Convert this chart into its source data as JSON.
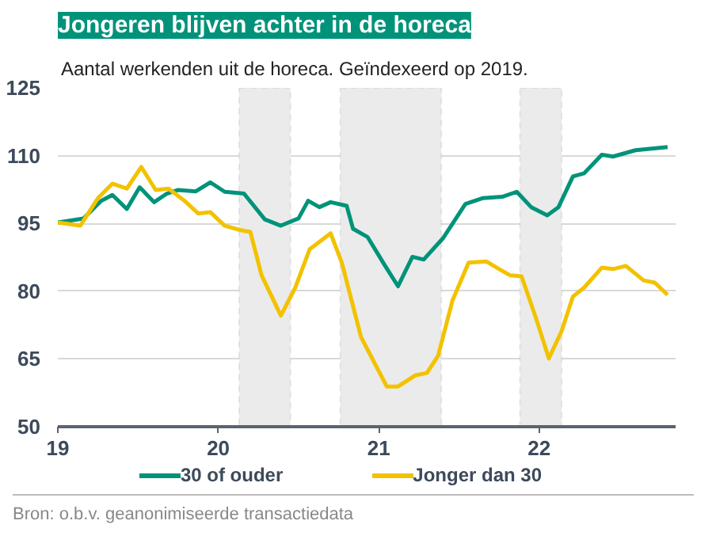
{
  "chart_data": {
    "type": "line",
    "title": "Jongeren blijven achter in de horeca",
    "subtitle": "Aantal werkenden uit de horeca. Geïndexeerd op 2019.",
    "annotations": [
      "Bron: o.b.v. geanonimiseerde transactiedata"
    ],
    "xlim": [
      19,
      22.85
    ],
    "xticks": [
      19,
      20,
      21,
      22
    ],
    "ylim": [
      50,
      125
    ],
    "yticks": [
      50,
      65,
      80,
      95,
      110,
      125
    ],
    "grid": "y",
    "legend": "bottom",
    "line_style": "solid",
    "marker": "none",
    "bands": [
      {
        "axis": "x",
        "from": 20.13,
        "to": 20.45,
        "color": "#ebebeb"
      },
      {
        "axis": "x",
        "from": 20.76,
        "to": 21.39,
        "color": "#ebebeb"
      },
      {
        "axis": "x",
        "from": 21.88,
        "to": 22.14,
        "color": "#ebebeb"
      }
    ],
    "series": [
      {
        "name": "30 of ouder",
        "color": "#00937a",
        "x": [
          19,
          19.16,
          19.27,
          19.34,
          19.43,
          19.51,
          19.6,
          19.68,
          19.75,
          19.86,
          19.95,
          20.04,
          20.16,
          20.29,
          20.39,
          20.5,
          20.56,
          20.63,
          20.7,
          20.8,
          20.84,
          20.93,
          21.04,
          21.12,
          21.21,
          21.28,
          21.4,
          21.54,
          21.65,
          21.77,
          21.86,
          21.95,
          22.05,
          22.12,
          22.21,
          22.28,
          22.39,
          22.46,
          22.6,
          22.8
        ],
        "values": [
          95.2,
          96.1,
          100,
          101.3,
          98.2,
          103,
          99.7,
          101.6,
          102.4,
          102.1,
          104.1,
          102,
          101.6,
          95.9,
          94.5,
          96.1,
          100,
          98.6,
          99.7,
          98.9,
          93.8,
          92,
          85.6,
          81.1,
          87.6,
          87,
          91.7,
          99.3,
          100.6,
          100.9,
          102,
          98.6,
          96.8,
          98.6,
          105.4,
          106.1,
          110.2,
          109.8,
          111.2,
          111.9
        ]
      },
      {
        "name": "Jonger dan 30",
        "color": "#f2c200",
        "x": [
          19,
          19.14,
          19.25,
          19.34,
          19.43,
          19.52,
          19.61,
          19.69,
          19.79,
          19.875,
          19.95,
          20.04,
          20.14,
          20.2,
          20.27,
          20.39,
          20.48,
          20.57,
          20.7,
          20.77,
          20.89,
          21.05,
          21.12,
          21.23,
          21.3,
          21.37,
          21.46,
          21.56,
          21.67,
          21.75,
          21.82,
          21.89,
          21.98,
          22.06,
          22.14,
          22.21,
          22.28,
          22.39,
          22.46,
          22.54,
          22.65,
          22.72,
          22.8
        ],
        "values": [
          95.2,
          94.5,
          100.6,
          103.8,
          102.7,
          107.5,
          102.4,
          102.7,
          100,
          97.2,
          97.5,
          94.5,
          93.5,
          93.1,
          83.5,
          74.6,
          80.8,
          89.3,
          92.8,
          86.3,
          69.8,
          58.9,
          58.9,
          61.4,
          61.9,
          65.7,
          78,
          86.3,
          86.6,
          84.9,
          83.5,
          83.3,
          74,
          65.1,
          71.2,
          78.8,
          80.8,
          85.2,
          84.9,
          85.6,
          82.4,
          81.9,
          79.2
        ]
      }
    ]
  }
}
